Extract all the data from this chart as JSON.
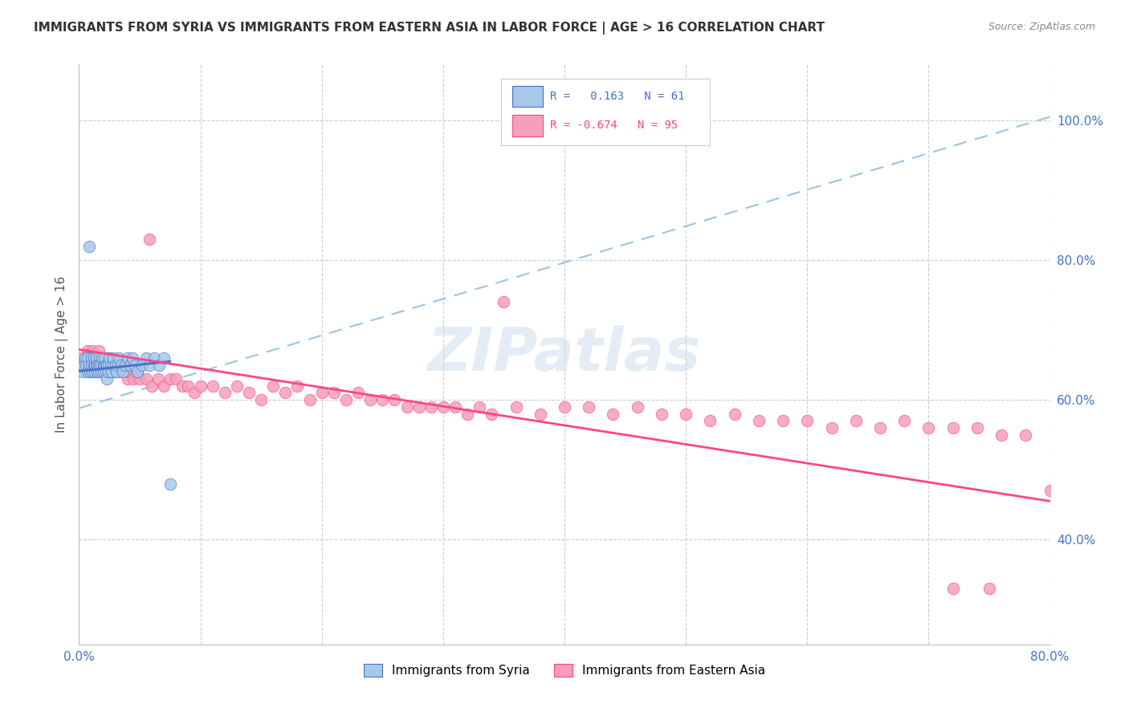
{
  "title": "IMMIGRANTS FROM SYRIA VS IMMIGRANTS FROM EASTERN ASIA IN LABOR FORCE | AGE > 16 CORRELATION CHART",
  "source": "Source: ZipAtlas.com",
  "ylabel": "In Labor Force | Age > 16",
  "x_min": 0.0,
  "x_max": 0.8,
  "y_min": 0.25,
  "y_max": 1.08,
  "color_syria": "#a8c8e8",
  "color_eastern_asia": "#f4a0b8",
  "color_syria_line": "#4472C4",
  "color_eastern_asia_line": "#FF4488",
  "color_dash_line": "#90BEE0",
  "watermark": "ZIPatlas",
  "grid_color": "#CCCCCC",
  "background": "#FFFFFF",
  "syria_x": [
    0.003,
    0.004,
    0.005,
    0.006,
    0.007,
    0.007,
    0.008,
    0.008,
    0.009,
    0.01,
    0.01,
    0.011,
    0.012,
    0.012,
    0.013,
    0.013,
    0.014,
    0.014,
    0.015,
    0.015,
    0.016,
    0.016,
    0.017,
    0.017,
    0.018,
    0.018,
    0.019,
    0.02,
    0.02,
    0.021,
    0.021,
    0.022,
    0.022,
    0.023,
    0.023,
    0.024,
    0.024,
    0.025,
    0.026,
    0.027,
    0.028,
    0.028,
    0.03,
    0.031,
    0.032,
    0.033,
    0.035,
    0.036,
    0.038,
    0.04,
    0.042,
    0.044,
    0.046,
    0.048,
    0.052,
    0.055,
    0.058,
    0.062,
    0.066,
    0.07,
    0.075
  ],
  "syria_y": [
    0.64,
    0.65,
    0.66,
    0.65,
    0.64,
    0.66,
    0.82,
    0.65,
    0.64,
    0.66,
    0.65,
    0.64,
    0.65,
    0.66,
    0.65,
    0.64,
    0.65,
    0.66,
    0.64,
    0.65,
    0.64,
    0.65,
    0.66,
    0.65,
    0.64,
    0.65,
    0.66,
    0.65,
    0.64,
    0.65,
    0.66,
    0.65,
    0.64,
    0.65,
    0.63,
    0.65,
    0.64,
    0.66,
    0.65,
    0.64,
    0.65,
    0.66,
    0.65,
    0.64,
    0.65,
    0.66,
    0.65,
    0.64,
    0.65,
    0.66,
    0.65,
    0.66,
    0.65,
    0.64,
    0.65,
    0.66,
    0.65,
    0.66,
    0.65,
    0.66,
    0.48
  ],
  "ea_x": [
    0.003,
    0.005,
    0.007,
    0.008,
    0.009,
    0.01,
    0.011,
    0.012,
    0.013,
    0.014,
    0.015,
    0.016,
    0.017,
    0.018,
    0.019,
    0.02,
    0.021,
    0.022,
    0.023,
    0.024,
    0.025,
    0.026,
    0.027,
    0.028,
    0.03,
    0.032,
    0.034,
    0.036,
    0.038,
    0.04,
    0.042,
    0.045,
    0.048,
    0.05,
    0.055,
    0.058,
    0.06,
    0.065,
    0.07,
    0.075,
    0.08,
    0.085,
    0.09,
    0.095,
    0.1,
    0.11,
    0.12,
    0.13,
    0.14,
    0.15,
    0.16,
    0.17,
    0.18,
    0.19,
    0.2,
    0.21,
    0.22,
    0.23,
    0.24,
    0.25,
    0.26,
    0.27,
    0.28,
    0.29,
    0.3,
    0.31,
    0.32,
    0.33,
    0.34,
    0.35,
    0.36,
    0.38,
    0.4,
    0.42,
    0.44,
    0.46,
    0.48,
    0.5,
    0.52,
    0.54,
    0.56,
    0.58,
    0.6,
    0.62,
    0.64,
    0.66,
    0.68,
    0.7,
    0.72,
    0.74,
    0.76,
    0.78,
    0.8,
    0.72,
    0.75
  ],
  "ea_y": [
    0.66,
    0.65,
    0.67,
    0.66,
    0.65,
    0.66,
    0.67,
    0.65,
    0.66,
    0.65,
    0.66,
    0.67,
    0.65,
    0.66,
    0.65,
    0.66,
    0.65,
    0.66,
    0.65,
    0.66,
    0.65,
    0.66,
    0.65,
    0.65,
    0.64,
    0.65,
    0.64,
    0.65,
    0.64,
    0.63,
    0.64,
    0.63,
    0.64,
    0.63,
    0.63,
    0.83,
    0.62,
    0.63,
    0.62,
    0.63,
    0.63,
    0.62,
    0.62,
    0.61,
    0.62,
    0.62,
    0.61,
    0.62,
    0.61,
    0.6,
    0.62,
    0.61,
    0.62,
    0.6,
    0.61,
    0.61,
    0.6,
    0.61,
    0.6,
    0.6,
    0.6,
    0.59,
    0.59,
    0.59,
    0.59,
    0.59,
    0.58,
    0.59,
    0.58,
    0.74,
    0.59,
    0.58,
    0.59,
    0.59,
    0.58,
    0.59,
    0.58,
    0.58,
    0.57,
    0.58,
    0.57,
    0.57,
    0.57,
    0.56,
    0.57,
    0.56,
    0.57,
    0.56,
    0.56,
    0.56,
    0.55,
    0.55,
    0.47,
    0.33,
    0.33
  ],
  "syria_line_x": [
    0.0,
    0.075
  ],
  "syria_line_y": [
    0.641,
    0.655
  ],
  "ea_line_x": [
    0.0,
    0.8
  ],
  "ea_line_y": [
    0.672,
    0.455
  ],
  "dash_line_x": [
    0.0,
    0.8
  ],
  "dash_line_y": [
    0.588,
    1.005
  ]
}
